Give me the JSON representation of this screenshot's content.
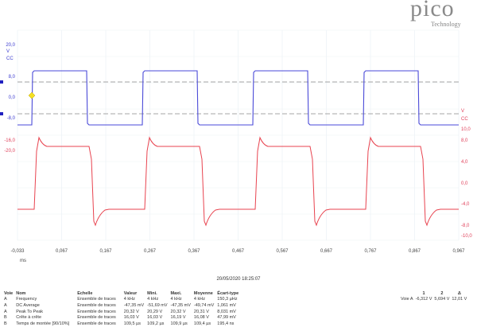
{
  "logo": {
    "text": "pico",
    "sub": "Technology"
  },
  "chart_data": {
    "type": "line",
    "x": {
      "label": "ms",
      "range": [
        -0.033,
        0.967
      ],
      "ticks": [
        "-0,033",
        "0,067",
        "0,167",
        "0,267",
        "0,367",
        "0,467",
        "0,567",
        "0,667",
        "0,767",
        "0,867",
        "0,967"
      ]
    },
    "y_left": {
      "unit": "V",
      "coupling": "CC",
      "ticks": [
        "20,0",
        "8,0",
        "0,0",
        "-8,0",
        "-16,0",
        "-20,0"
      ],
      "color": "#3b3bd0"
    },
    "y_right": {
      "unit": "V",
      "coupling": "CC",
      "ticks": [
        "10,0",
        "8,0",
        "4,0",
        "0,0",
        "-4,0",
        "-8,0",
        "-10,0"
      ],
      "color": "#e0405a"
    },
    "series": [
      {
        "channel": "A",
        "color": "#4a4ad8",
        "shape": "square",
        "high": 8.0,
        "low": -12.3,
        "frequency_khz": 4
      },
      {
        "channel": "B",
        "color": "#e8434f",
        "shape": "square-with-overshoot",
        "high": 5.8,
        "low": -5.2,
        "peak": 8.6,
        "trough": -8.0,
        "frequency_khz": 4
      }
    ],
    "cursors": {
      "levels": [
        5.694,
        -6.312
      ],
      "trigger_marker": "yellow-diamond"
    },
    "grid": true
  },
  "timestamp": "20/05/2020 18:25:07",
  "measurements": {
    "headers": [
      "Voie",
      "Nom",
      "Echelle",
      "Valeur",
      "Mini.",
      "Maxi.",
      "Moyenne",
      "Écart-type"
    ],
    "rows": [
      [
        "A",
        "Frequency",
        "Ensemble de traces",
        "4 kHz",
        "4 kHz",
        "4 kHz",
        "4 kHz",
        "150,3 µHz"
      ],
      [
        "A",
        "DC Average",
        "Ensemble de traces",
        "-47,35 mV",
        "-51,69 mV",
        "-47,35 mV",
        "-49,74 mV",
        "1,061 mV"
      ],
      [
        "A",
        "Peak To Peak",
        "Ensemble de traces",
        "20,32 V",
        "20,29 V",
        "20,32 V",
        "20,31 V",
        "8,031 mV"
      ],
      [
        "B",
        "Crête à crête",
        "Ensemble de traces",
        "16,03 V",
        "16,03 V",
        "16,19 V",
        "16,08 V",
        "47,99 mV"
      ],
      [
        "B",
        "Temps de montée  [90/10%]",
        "Ensemble de traces",
        "109,5 µs",
        "109,2 µs",
        "109,9 µs",
        "109,4 µs",
        "195,4 ns"
      ]
    ]
  },
  "cursor_table": {
    "headers": [
      "",
      "1",
      "2",
      "Δ"
    ],
    "row": [
      "Voie A",
      "-6,312 V",
      "5,694 V",
      "12,01 V"
    ]
  }
}
